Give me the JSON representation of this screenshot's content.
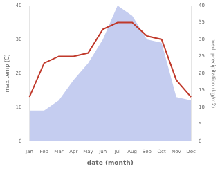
{
  "chart_data": {
    "type": "line",
    "categories": [
      "Jan",
      "Feb",
      "Mar",
      "Apr",
      "May",
      "Jun",
      "Jul",
      "Aug",
      "Sep",
      "Oct",
      "Nov",
      "Dec"
    ],
    "series": [
      {
        "type": "area",
        "color": "#c5cdf0",
        "axis": "y2",
        "values": [
          9,
          9,
          12,
          18,
          23,
          30,
          40,
          37,
          30,
          29,
          13,
          12
        ]
      },
      {
        "type": "line",
        "color": "#c0392b",
        "values": [
          13,
          23,
          25,
          25,
          26,
          33,
          35,
          35,
          31,
          30,
          18,
          13
        ]
      }
    ],
    "xlabel": "date (month)",
    "ylabel": "max temp (C)",
    "y2label": "med. precipitation (kg/m2)",
    "ylim": [
      0,
      40
    ],
    "yticks": [
      0,
      10,
      20,
      30,
      40
    ],
    "y2lim": [
      0,
      40
    ],
    "y2ticks": [
      0,
      5,
      10,
      15,
      20,
      25,
      30,
      35,
      40
    ],
    "grid": false
  }
}
